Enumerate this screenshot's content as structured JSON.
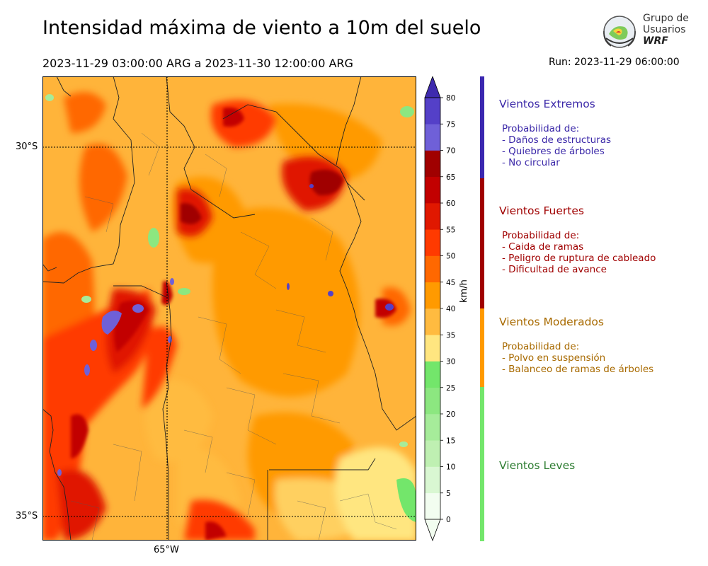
{
  "title": "Intensidad máxima de viento a 10m del suelo",
  "period": "2023-11-29 03:00:00 ARG  a  2023-11-30 12:00:00 ARG",
  "run": "Run: 2023-11-29 06:00:00",
  "logo": {
    "line1": "Grupo de",
    "line2": "Usuarios",
    "line3": "WRF"
  },
  "map": {
    "lat_labels": [
      "30°S",
      "35°S"
    ],
    "lon_labels": [
      "65°W"
    ]
  },
  "colorbar": {
    "unit": "km/h",
    "ticks": [
      "0",
      "5",
      "10",
      "15",
      "20",
      "25",
      "30",
      "35",
      "40",
      "45",
      "50",
      "55",
      "60",
      "65",
      "70",
      "75",
      "80"
    ],
    "colors": [
      "#f2fdf0",
      "#d9f7d2",
      "#bff0b2",
      "#a6ec9a",
      "#8ce780",
      "#73e66b",
      "#ffe680",
      "#ffbb40",
      "#ff9a00",
      "#ff6800",
      "#ff3a00",
      "#e01800",
      "#c20000",
      "#a00000",
      "#6f60d8",
      "#5440c8",
      "#3e2aae"
    ]
  },
  "categories": [
    {
      "title": "Vientos Extremos",
      "color": "#3a27a8",
      "lines": [
        "Probabilidad de:",
        "- Daños de estructuras",
        "- Quiebres de árboles",
        "- No circular"
      ]
    },
    {
      "title": "Vientos Fuertes",
      "color": "#a00000",
      "lines": [
        "Probabilidad de:",
        "- Caida de ramas",
        "- Peligro de ruptura de cableado",
        "- Dificultad de avance"
      ]
    },
    {
      "title": "Vientos Moderados",
      "color": "#a86a00",
      "lines": [
        "Probabilidad de:",
        "- Polvo en suspensión",
        "- Balanceo de ramas de árboles"
      ]
    },
    {
      "title": "Vientos Leves",
      "color": "#2e7d32",
      "lines": []
    }
  ]
}
